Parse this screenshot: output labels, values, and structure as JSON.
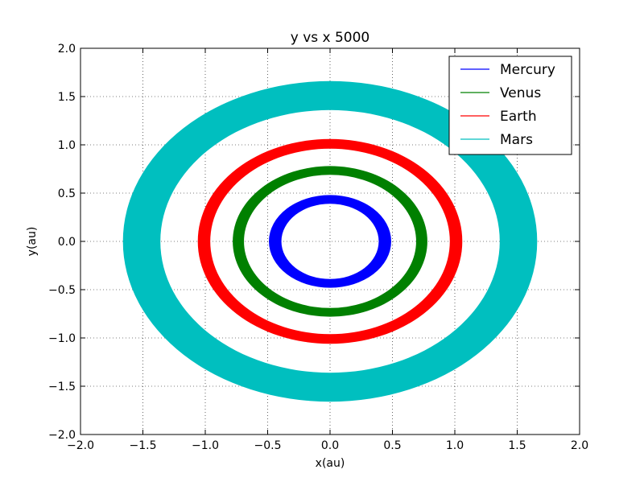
{
  "chart_data": {
    "type": "line",
    "title": "y vs x  5000",
    "xlabel": "x(au)",
    "ylabel": "y(au)",
    "xlim": [
      -2.0,
      2.0
    ],
    "ylim": [
      -2.0,
      2.0
    ],
    "xticks": [
      -2.0,
      -1.5,
      -1.0,
      -0.5,
      0.0,
      0.5,
      1.0,
      1.5,
      2.0
    ],
    "yticks": [
      -2.0,
      -1.5,
      -1.0,
      -0.5,
      0.0,
      0.5,
      1.0,
      1.5,
      2.0
    ],
    "xtick_labels": [
      "−2.0",
      "−1.5",
      "−1.0",
      "−0.5",
      "0.0",
      "0.5",
      "1.0",
      "1.5",
      "2.0"
    ],
    "ytick_labels": [
      "−2.0",
      "−1.5",
      "−1.0",
      "−0.5",
      "0.0",
      "0.5",
      "1.0",
      "1.5",
      "2.0"
    ],
    "grid": true,
    "legend_position": "top-right",
    "series": [
      {
        "name": "Mercury",
        "color": "#0000ff",
        "shape": "ring",
        "inner_rx": 0.39,
        "outer_rx": 0.49,
        "inner_ry": 0.39,
        "outer_ry": 0.48,
        "cx": 0.0,
        "cy": 0.0
      },
      {
        "name": "Venus",
        "color": "#008000",
        "shape": "ring",
        "inner_rx": 0.69,
        "outer_rx": 0.78,
        "inner_ry": 0.69,
        "outer_ry": 0.78,
        "cx": 0.0,
        "cy": 0.0
      },
      {
        "name": "Earth",
        "color": "#ff0000",
        "shape": "ring",
        "inner_rx": 0.96,
        "outer_rx": 1.06,
        "inner_ry": 0.96,
        "outer_ry": 1.06,
        "cx": 0.0,
        "cy": 0.0
      },
      {
        "name": "Mars",
        "color": "#00bfbf",
        "shape": "ring",
        "inner_rx": 1.36,
        "outer_rx": 1.66,
        "inner_ry": 1.36,
        "outer_ry": 1.66,
        "cx": 0.0,
        "cy": 0.0
      }
    ]
  }
}
